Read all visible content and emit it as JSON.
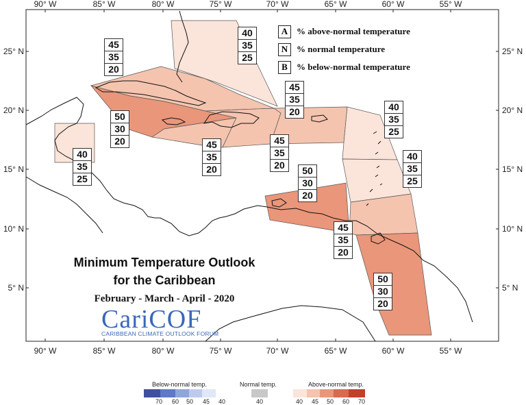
{
  "map": {
    "title_line1": "Minimum Temperature Outlook",
    "title_line2": "for the Caribbean",
    "period": "February - March - April - 2020",
    "logo_text": "CariCOF",
    "logo_subtitle": "CARIBBEAN CLIMATE OUTLOOK FORUM",
    "lon_labels": [
      "90° W",
      "85° W",
      "80° W",
      "75° W",
      "70° W",
      "65° W",
      "60° W",
      "55° W"
    ],
    "lat_labels": [
      "25° N",
      "20° N",
      "15° N",
      "10° N",
      "5° N"
    ],
    "land_color": "#ffffff",
    "ocean_color": "#ffffff"
  },
  "legend": {
    "items": [
      {
        "key": "A",
        "text": "% above-normal temperature"
      },
      {
        "key": "N",
        "text": "% normal temperature"
      },
      {
        "key": "B",
        "text": "% below-normal temperature"
      }
    ]
  },
  "regions": [
    {
      "id": "bahamas",
      "values": [
        "40",
        "35",
        "25"
      ],
      "color": "#fbe4da"
    },
    {
      "id": "cuba",
      "values": [
        "45",
        "35",
        "20"
      ],
      "color": "#f4c4af"
    },
    {
      "id": "cayman-jamaica",
      "values": [
        "50",
        "30",
        "20"
      ],
      "color": "#e9967a"
    },
    {
      "id": "belize",
      "values": [
        "40",
        "35",
        "25"
      ],
      "color": "#fbe4da"
    },
    {
      "id": "hispaniola-west",
      "values": [
        "45",
        "35",
        "20"
      ],
      "color": "#f4c4af"
    },
    {
      "id": "hispaniola-east",
      "values": [
        "45",
        "35",
        "20"
      ],
      "color": "#f4c4af"
    },
    {
      "id": "puerto-rico",
      "values": [
        "45",
        "35",
        "20"
      ],
      "color": "#f4c4af"
    },
    {
      "id": "leeward-islands",
      "values": [
        "40",
        "35",
        "25"
      ],
      "color": "#fbe4da"
    },
    {
      "id": "windward-islands",
      "values": [
        "40",
        "35",
        "25"
      ],
      "color": "#fbe4da"
    },
    {
      "id": "abc-islands",
      "values": [
        "50",
        "30",
        "20"
      ],
      "color": "#e9967a"
    },
    {
      "id": "trinidad",
      "values": [
        "45",
        "35",
        "20"
      ],
      "color": "#f4c4af"
    },
    {
      "id": "guianas",
      "values": [
        "50",
        "30",
        "20"
      ],
      "color": "#e9967a"
    }
  ],
  "colorbar": {
    "below_title": "Below-normal temp.",
    "normal_title": "Normal temp.",
    "above_title": "Above-normal temp.",
    "below_ticks": [
      "70",
      "60",
      "50",
      "45",
      "40"
    ],
    "normal_ticks": [
      "40"
    ],
    "above_ticks": [
      "40",
      "45",
      "50",
      "60",
      "70"
    ],
    "below_colors": [
      "#3f4fa0",
      "#5f78c8",
      "#8ea6dc",
      "#bccbed",
      "#e0e7f7"
    ],
    "normal_color": "#c8c8c8",
    "above_colors": [
      "#fbe4da",
      "#f4c4af",
      "#e9967a",
      "#d86a4d",
      "#c0402a"
    ]
  }
}
